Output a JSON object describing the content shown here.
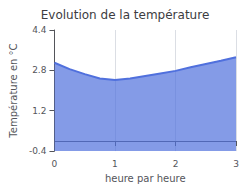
{
  "chart_data": {
    "type": "area",
    "title": "Evolution de la température",
    "x_label": "heure par heure",
    "y_label": "Température en °C",
    "x": [
      0,
      0.25,
      0.5,
      0.75,
      1.0,
      1.25,
      1.5,
      1.75,
      2.0,
      2.25,
      2.5,
      2.75,
      3.0
    ],
    "values": [
      3.1,
      2.85,
      2.65,
      2.48,
      2.42,
      2.48,
      2.58,
      2.68,
      2.78,
      2.92,
      3.05,
      3.18,
      3.32
    ],
    "xlim": [
      0,
      3
    ],
    "ylim": [
      -0.4,
      4.4
    ],
    "xticks": [
      0,
      1,
      2,
      3
    ],
    "yticks": [
      -0.4,
      1.2,
      2.8,
      4.4
    ],
    "grid": "x"
  }
}
